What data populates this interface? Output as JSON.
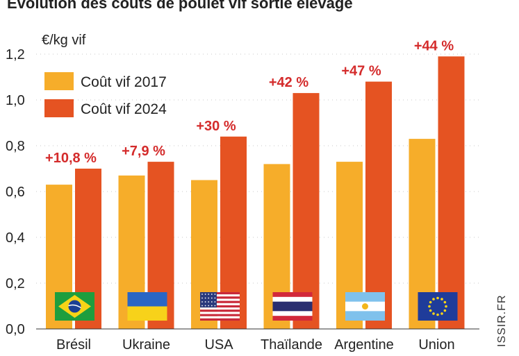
{
  "chart_data": {
    "type": "bar",
    "title": "Évolution des coûts de poulet vif sortie élevage",
    "ylabel": "€/kg vif",
    "ylim": [
      0,
      1.3
    ],
    "yticks": [
      0.0,
      0.2,
      0.4,
      0.6,
      0.8,
      1.0,
      1.2
    ],
    "ytick_labels": [
      "0,0",
      "0,2",
      "0,4",
      "0,6",
      "0,8",
      "1,0",
      "1,2"
    ],
    "grid": true,
    "legend": "top-left",
    "categories": [
      "Brésil",
      "Ukraine",
      "USA",
      "Thaïlande",
      "Argentine",
      "Union"
    ],
    "series": [
      {
        "name": "Coût vif 2017",
        "color": "#f6ad2a",
        "values": [
          0.63,
          0.67,
          0.65,
          0.72,
          0.73,
          0.83
        ]
      },
      {
        "name": "Coût vif 2024",
        "color": "#e55322",
        "values": [
          0.7,
          0.73,
          0.84,
          1.03,
          1.08,
          1.19
        ]
      }
    ],
    "annotations": [
      "+10,8 %",
      "+7,9 %",
      "+30 %",
      "+42 %",
      "+47 %",
      "+44 %"
    ],
    "annotation_color": "#d42b2b",
    "flags": [
      "brazil-flag",
      "ukraine-flag",
      "usa-flag",
      "thailand-flag",
      "argentina-flag",
      "eu-flag"
    ],
    "source": "ISSIR.FR"
  }
}
